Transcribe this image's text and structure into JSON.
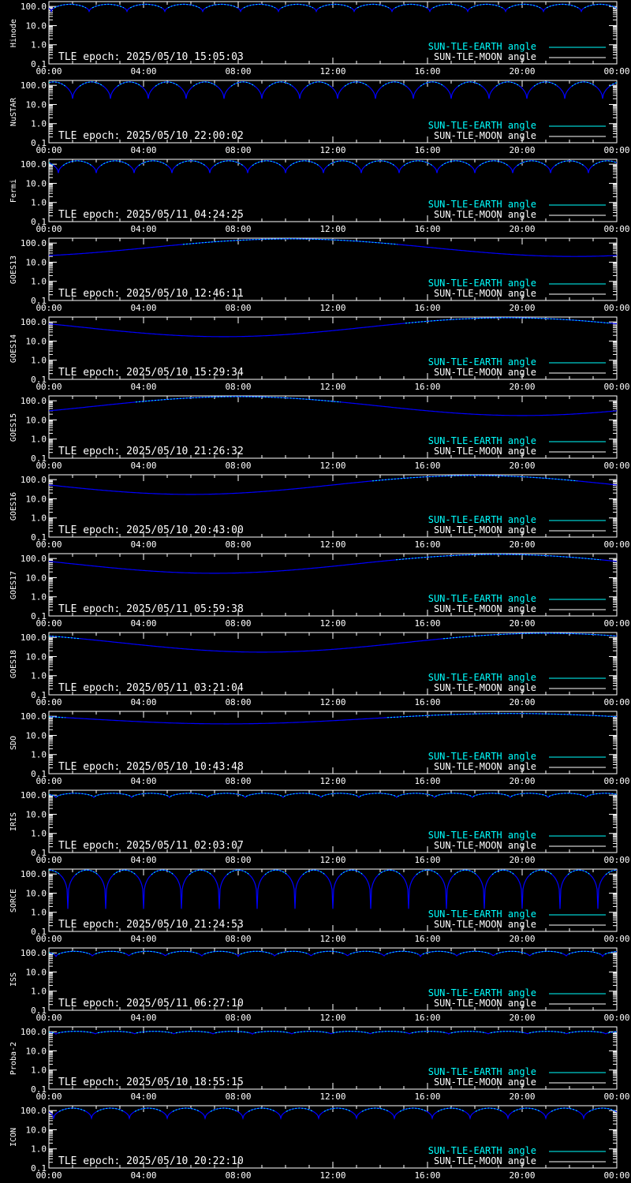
{
  "colors": {
    "background": "#000000",
    "axis": "#ffffff",
    "earth_curve": "#0000ff",
    "earth_curve_light": "#00ffff",
    "earth_legend": "#00ffff",
    "moon_legend": "#ffffff"
  },
  "shared": {
    "x_ticks": [
      "00:00",
      "04:00",
      "08:00",
      "12:00",
      "16:00",
      "20:00",
      "00:00"
    ],
    "y_ticks": [
      "100.0",
      "10.0",
      "1.0",
      "0.1"
    ],
    "legend": [
      "SUN-TLE-EARTH angle",
      "SUN-TLE-MOON angle"
    ],
    "epoch_prefix": "TLE epoch: "
  },
  "chart_data": [
    {
      "type": "line",
      "ylabel": "Hinode",
      "epoch": "2025/05/10 15:05:03",
      "xlim": [
        0,
        24
      ],
      "ylim": [
        0.1,
        180
      ],
      "y_scale": "log",
      "series": [
        {
          "kind": "periodic",
          "period_h": 1.6,
          "phase_h": 0.1,
          "min": 55,
          "max": 130
        }
      ]
    },
    {
      "type": "line",
      "ylabel": "NuSTAR",
      "epoch": "2025/05/10 22:00:02",
      "xlim": [
        0,
        24
      ],
      "ylim": [
        0.1,
        180
      ],
      "y_scale": "log",
      "series": [
        {
          "kind": "periodic",
          "period_h": 1.6,
          "phase_h": 1.0,
          "min": 20,
          "max": 150
        }
      ]
    },
    {
      "type": "line",
      "ylabel": "Fermi",
      "epoch": "2025/05/11 04:24:25",
      "xlim": [
        0,
        24
      ],
      "ylim": [
        0.1,
        180
      ],
      "y_scale": "log",
      "series": [
        {
          "kind": "periodic",
          "period_h": 1.6,
          "phase_h": 0.4,
          "min": 35,
          "max": 150
        }
      ]
    },
    {
      "type": "line",
      "ylabel": "GOES13",
      "epoch": "2025/05/10 12:46:11",
      "xlim": [
        0,
        24
      ],
      "ylim": [
        0.1,
        180
      ],
      "y_scale": "log",
      "series": [
        {
          "kind": "daily",
          "period_h": 24,
          "min_at_h": 22.2,
          "min": 20,
          "max": 165
        }
      ]
    },
    {
      "type": "line",
      "ylabel": "GOES14",
      "epoch": "2025/05/10 15:29:34",
      "xlim": [
        0,
        24
      ],
      "ylim": [
        0.1,
        180
      ],
      "y_scale": "log",
      "series": [
        {
          "kind": "daily",
          "period_h": 24,
          "min_at_h": 7.4,
          "min": 17,
          "max": 165
        }
      ]
    },
    {
      "type": "line",
      "ylabel": "GOES15",
      "epoch": "2025/05/10 21:26:32",
      "xlim": [
        0,
        24
      ],
      "ylim": [
        0.1,
        180
      ],
      "y_scale": "log",
      "series": [
        {
          "kind": "daily",
          "period_h": 24,
          "min_at_h": 20.0,
          "min": 17,
          "max": 165
        }
      ]
    },
    {
      "type": "line",
      "ylabel": "GOES16",
      "epoch": "2025/05/10 20:43:00",
      "xlim": [
        0,
        24
      ],
      "ylim": [
        0.1,
        180
      ],
      "y_scale": "log",
      "series": [
        {
          "kind": "daily",
          "period_h": 24,
          "min_at_h": 6.0,
          "min": 17,
          "max": 165
        }
      ]
    },
    {
      "type": "line",
      "ylabel": "GOES17",
      "epoch": "2025/05/11 05:59:38",
      "xlim": [
        0,
        24
      ],
      "ylim": [
        0.1,
        180
      ],
      "y_scale": "log",
      "series": [
        {
          "kind": "daily",
          "period_h": 24,
          "min_at_h": 7.0,
          "min": 17,
          "max": 165
        }
      ]
    },
    {
      "type": "line",
      "ylabel": "GOES18",
      "epoch": "2025/05/11 03:21:04",
      "xlim": [
        0,
        24
      ],
      "ylim": [
        0.1,
        180
      ],
      "y_scale": "log",
      "series": [
        {
          "kind": "daily",
          "period_h": 24,
          "min_at_h": 9.0,
          "min": 17,
          "max": 165
        }
      ]
    },
    {
      "type": "line",
      "ylabel": "SDO",
      "epoch": "2025/05/10 10:43:48",
      "xlim": [
        0,
        24
      ],
      "ylim": [
        0.1,
        180
      ],
      "y_scale": "log",
      "series": [
        {
          "kind": "daily",
          "period_h": 24,
          "min_at_h": 7.5,
          "min": 40,
          "max": 140
        }
      ]
    },
    {
      "type": "line",
      "ylabel": "IRIS",
      "epoch": "2025/05/11 02:03:07",
      "xlim": [
        0,
        24
      ],
      "ylim": [
        0.1,
        180
      ],
      "y_scale": "log",
      "series": [
        {
          "kind": "periodic",
          "period_h": 1.6,
          "phase_h": 0.3,
          "min": 75,
          "max": 125
        }
      ]
    },
    {
      "type": "line",
      "ylabel": "SORCE",
      "epoch": "2025/05/10 21:24:53",
      "xlim": [
        0,
        24
      ],
      "ylim": [
        0.1,
        180
      ],
      "y_scale": "log",
      "series": [
        {
          "kind": "cusp",
          "period_h": 1.6,
          "phase_h": 0.8,
          "min": 1.5,
          "max": 160
        }
      ]
    },
    {
      "type": "line",
      "ylabel": "ISS",
      "epoch": "2025/05/11 06:27:10",
      "xlim": [
        0,
        24
      ],
      "ylim": [
        0.1,
        180
      ],
      "y_scale": "log",
      "series": [
        {
          "kind": "periodic",
          "period_h": 1.54,
          "phase_h": 0.3,
          "min": 65,
          "max": 120
        }
      ]
    },
    {
      "type": "line",
      "ylabel": "Proba-2",
      "epoch": "2025/05/10 18:55:15",
      "xlim": [
        0,
        24
      ],
      "ylim": [
        0.1,
        180
      ],
      "y_scale": "log",
      "series": [
        {
          "kind": "periodic",
          "period_h": 1.66,
          "phase_h": 0.3,
          "min": 75,
          "max": 105
        }
      ]
    },
    {
      "type": "line",
      "ylabel": "ICON",
      "epoch": "2025/05/10 20:22:10",
      "xlim": [
        0,
        24
      ],
      "ylim": [
        0.1,
        180
      ],
      "y_scale": "log",
      "series": [
        {
          "kind": "periodic",
          "period_h": 1.6,
          "phase_h": 0.2,
          "min": 40,
          "max": 135
        }
      ]
    }
  ]
}
